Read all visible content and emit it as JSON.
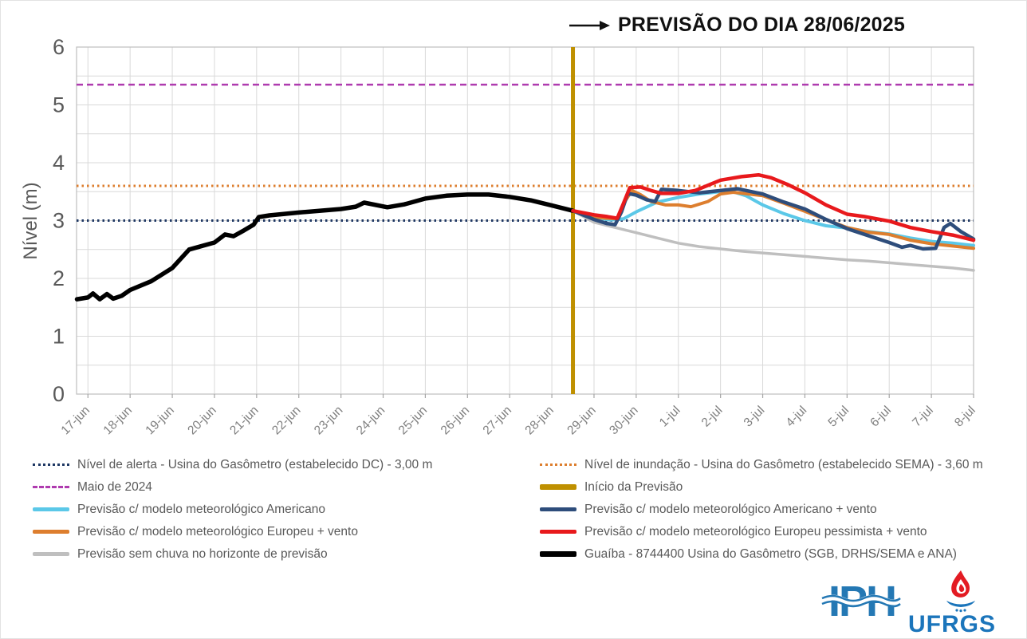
{
  "title": {
    "text": "PREVISÃO DO DIA 28/06/2025"
  },
  "chart_data": {
    "type": "line",
    "title": "PREVISÃO DO DIA 28/06/2025",
    "ylabel": "Nível (m)",
    "ylim": [
      0,
      6
    ],
    "y_major_ticks": [
      0,
      1,
      2,
      3,
      4,
      5,
      6
    ],
    "y_grid_step": 0.5,
    "xlim_days": [
      -0.27,
      21.0
    ],
    "x_ticks": [
      {
        "label": "17-jun",
        "d": 0
      },
      {
        "label": "18-jun",
        "d": 1
      },
      {
        "label": "19-jun",
        "d": 2
      },
      {
        "label": "20-jun",
        "d": 3
      },
      {
        "label": "21-jun",
        "d": 4
      },
      {
        "label": "22-jun",
        "d": 5
      },
      {
        "label": "23-jun",
        "d": 6
      },
      {
        "label": "24-jun",
        "d": 7
      },
      {
        "label": "25-jun",
        "d": 8
      },
      {
        "label": "26-jun",
        "d": 9
      },
      {
        "label": "27-jun",
        "d": 10
      },
      {
        "label": "28-jun",
        "d": 11
      },
      {
        "label": "29-jun",
        "d": 12
      },
      {
        "label": "30-jun",
        "d": 13
      },
      {
        "label": "1-jul",
        "d": 14
      },
      {
        "label": "2-jul",
        "d": 15
      },
      {
        "label": "3-jul",
        "d": 16
      },
      {
        "label": "4-jul",
        "d": 17
      },
      {
        "label": "5-jul",
        "d": 18
      },
      {
        "label": "6-jul",
        "d": 19
      },
      {
        "label": "7-jul",
        "d": 20
      },
      {
        "label": "8-jul",
        "d": 21
      }
    ],
    "grid_color": "#D9D9D9",
    "axis_color": "#BFBFBF",
    "tick_color": "#A6A6A6",
    "tick_label_color": "#7F7F7F",
    "y_label_color": "#595959",
    "forecast_start": {
      "label": "Início da Previsão",
      "d": 11.5,
      "color": "#BF9000",
      "width": 5
    },
    "reference_lines": [
      {
        "name": "maio-2024",
        "label": "Maio de 2024",
        "value": 5.35,
        "color": "#AF3BAF",
        "dash": "8 5",
        "width": 2.5
      },
      {
        "name": "nivel-inundacao",
        "label": "Nível de inundação - Usina do Gasômetro (estabelecido SEMA) - 3,60 m",
        "value": 3.6,
        "color": "#DD7E2E",
        "dash": "2.5 4",
        "width": 3
      },
      {
        "name": "nivel-alerta",
        "label": "Nível de alerta - Usina do Gasômetro (estabelecido DC) - 3,00 m",
        "value": 3.0,
        "color": "#1F3864",
        "dash": "2.5 4",
        "width": 3
      }
    ],
    "series": [
      {
        "name": "guaiba-observado",
        "label": "Guaíba - 8744400 Usina do Gasômetro (SGB, DRHS/SEMA e ANA)",
        "color": "#000000",
        "width": 5.5,
        "points": [
          [
            -0.26,
            1.64
          ],
          [
            0,
            1.67
          ],
          [
            0.12,
            1.74
          ],
          [
            0.28,
            1.64
          ],
          [
            0.45,
            1.73
          ],
          [
            0.6,
            1.65
          ],
          [
            0.8,
            1.7
          ],
          [
            1.0,
            1.8
          ],
          [
            1.5,
            1.95
          ],
          [
            2.0,
            2.18
          ],
          [
            2.4,
            2.5
          ],
          [
            3.0,
            2.62
          ],
          [
            3.25,
            2.76
          ],
          [
            3.45,
            2.73
          ],
          [
            3.7,
            2.83
          ],
          [
            3.93,
            2.93
          ],
          [
            4.05,
            3.06
          ],
          [
            4.3,
            3.09
          ],
          [
            5.0,
            3.14
          ],
          [
            6.0,
            3.2
          ],
          [
            6.35,
            3.24
          ],
          [
            6.55,
            3.31
          ],
          [
            7.1,
            3.23
          ],
          [
            7.5,
            3.28
          ],
          [
            8.0,
            3.38
          ],
          [
            8.5,
            3.43
          ],
          [
            9.0,
            3.45
          ],
          [
            9.5,
            3.45
          ],
          [
            10.0,
            3.41
          ],
          [
            10.5,
            3.35
          ],
          [
            11.0,
            3.26
          ],
          [
            11.5,
            3.17
          ]
        ]
      },
      {
        "name": "sem-chuva",
        "label": "Previsão sem chuva no horizonte de previsão",
        "color": "#BFBFBF",
        "width": 3.5,
        "points": [
          [
            11.5,
            3.17
          ],
          [
            12.0,
            2.97
          ],
          [
            12.5,
            2.88
          ],
          [
            13.0,
            2.79
          ],
          [
            13.5,
            2.7
          ],
          [
            14.0,
            2.61
          ],
          [
            14.5,
            2.55
          ],
          [
            15.0,
            2.51
          ],
          [
            15.5,
            2.47
          ],
          [
            16.0,
            2.44
          ],
          [
            16.5,
            2.41
          ],
          [
            17.0,
            2.38
          ],
          [
            17.5,
            2.35
          ],
          [
            18.0,
            2.32
          ],
          [
            18.5,
            2.3
          ],
          [
            19.0,
            2.27
          ],
          [
            19.5,
            2.24
          ],
          [
            20.0,
            2.21
          ],
          [
            20.5,
            2.18
          ],
          [
            21.0,
            2.14
          ]
        ]
      },
      {
        "name": "americano",
        "label": "Previsão c/ modelo meteorológico Americano",
        "color": "#5BC8E8",
        "width": 4,
        "points": [
          [
            11.5,
            3.17
          ],
          [
            12.0,
            3.05
          ],
          [
            12.4,
            3.01
          ],
          [
            12.7,
            3.03
          ],
          [
            13.0,
            3.15
          ],
          [
            13.5,
            3.32
          ],
          [
            14.0,
            3.4
          ],
          [
            14.5,
            3.46
          ],
          [
            15.0,
            3.5
          ],
          [
            15.2,
            3.52
          ],
          [
            15.6,
            3.43
          ],
          [
            16.0,
            3.27
          ],
          [
            16.5,
            3.12
          ],
          [
            17.0,
            3.0
          ],
          [
            17.5,
            2.91
          ],
          [
            18.0,
            2.87
          ],
          [
            18.5,
            2.81
          ],
          [
            19.0,
            2.77
          ],
          [
            19.5,
            2.7
          ],
          [
            20.0,
            2.64
          ],
          [
            20.5,
            2.61
          ],
          [
            21.0,
            2.57
          ]
        ]
      },
      {
        "name": "europeu-vento",
        "label": "Previsão c/ modelo meteorológico Europeu + vento",
        "color": "#DD7E2E",
        "width": 4,
        "points": [
          [
            11.5,
            3.17
          ],
          [
            12.0,
            3.06
          ],
          [
            12.3,
            3.04
          ],
          [
            12.55,
            3.03
          ],
          [
            12.75,
            3.35
          ],
          [
            12.9,
            3.52
          ],
          [
            13.1,
            3.45
          ],
          [
            13.35,
            3.33
          ],
          [
            13.7,
            3.27
          ],
          [
            14.0,
            3.27
          ],
          [
            14.3,
            3.24
          ],
          [
            14.7,
            3.33
          ],
          [
            15.0,
            3.46
          ],
          [
            15.3,
            3.49
          ],
          [
            16.0,
            3.43
          ],
          [
            16.5,
            3.3
          ],
          [
            17.0,
            3.16
          ],
          [
            17.5,
            3.02
          ],
          [
            18.0,
            2.88
          ],
          [
            18.5,
            2.8
          ],
          [
            19.0,
            2.76
          ],
          [
            19.5,
            2.66
          ],
          [
            20.0,
            2.6
          ],
          [
            20.5,
            2.56
          ],
          [
            21.0,
            2.52
          ]
        ]
      },
      {
        "name": "americano-vento",
        "label": "Previsão c/ modelo meteorológico Americano + vento",
        "color": "#2E4D7B",
        "width": 4.5,
        "points": [
          [
            11.5,
            3.17
          ],
          [
            12.0,
            3.02
          ],
          [
            12.3,
            2.95
          ],
          [
            12.5,
            2.93
          ],
          [
            12.65,
            3.15
          ],
          [
            12.8,
            3.47
          ],
          [
            13.0,
            3.44
          ],
          [
            13.25,
            3.36
          ],
          [
            13.45,
            3.33
          ],
          [
            13.6,
            3.54
          ],
          [
            14.0,
            3.52
          ],
          [
            14.5,
            3.48
          ],
          [
            15.0,
            3.52
          ],
          [
            15.4,
            3.55
          ],
          [
            16.0,
            3.46
          ],
          [
            16.5,
            3.32
          ],
          [
            17.0,
            3.2
          ],
          [
            17.5,
            3.02
          ],
          [
            18.0,
            2.86
          ],
          [
            18.5,
            2.74
          ],
          [
            19.0,
            2.62
          ],
          [
            19.3,
            2.54
          ],
          [
            19.5,
            2.57
          ],
          [
            19.8,
            2.51
          ],
          [
            20.1,
            2.52
          ],
          [
            20.3,
            2.88
          ],
          [
            20.45,
            2.95
          ],
          [
            20.7,
            2.81
          ],
          [
            21.0,
            2.68
          ]
        ]
      },
      {
        "name": "europeu-pessimista-vento",
        "label": "Previsão c/ modelo meteorológico Europeu pessimista + vento",
        "color": "#E8191C",
        "width": 4.5,
        "points": [
          [
            11.5,
            3.17
          ],
          [
            12.0,
            3.1
          ],
          [
            12.3,
            3.07
          ],
          [
            12.55,
            3.04
          ],
          [
            12.7,
            3.3
          ],
          [
            12.85,
            3.57
          ],
          [
            13.1,
            3.58
          ],
          [
            13.35,
            3.52
          ],
          [
            13.6,
            3.47
          ],
          [
            14.0,
            3.47
          ],
          [
            14.4,
            3.52
          ],
          [
            15.0,
            3.7
          ],
          [
            15.5,
            3.76
          ],
          [
            15.9,
            3.79
          ],
          [
            16.2,
            3.74
          ],
          [
            16.6,
            3.62
          ],
          [
            17.0,
            3.48
          ],
          [
            17.5,
            3.27
          ],
          [
            18.0,
            3.11
          ],
          [
            18.4,
            3.07
          ],
          [
            19.0,
            2.99
          ],
          [
            19.5,
            2.88
          ],
          [
            20.0,
            2.81
          ],
          [
            20.5,
            2.75
          ],
          [
            21.0,
            2.66
          ]
        ]
      }
    ]
  },
  "legend": {
    "left": [
      {
        "label": "Nível de alerta - Usina do Gasômetro (estabelecido DC) - 3,00 m",
        "color": "#1F3864",
        "style": "dotted"
      },
      {
        "label": "Maio de 2024",
        "color": "#AF3BAF",
        "style": "dashed"
      },
      {
        "label": "Previsão c/ modelo meteorológico Americano",
        "color": "#5BC8E8",
        "style": "line"
      },
      {
        "label": "Previsão c/ modelo meteorológico Europeu + vento",
        "color": "#DD7E2E",
        "style": "line"
      },
      {
        "label": "Previsão sem chuva no horizonte de previsão",
        "color": "#BFBFBF",
        "style": "line"
      }
    ],
    "right": [
      {
        "label": "Nível de inundação - Usina do Gasômetro (estabelecido SEMA) - 3,60 m",
        "color": "#DD7E2E",
        "style": "dotted"
      },
      {
        "label": "Início da Previsão",
        "color": "#BF9000",
        "style": "thick"
      },
      {
        "label": "Previsão c/ modelo meteorológico Americano + vento",
        "color": "#2E4D7B",
        "style": "line"
      },
      {
        "label": "Previsão c/ modelo meteorológico Europeu pessimista + vento",
        "color": "#E8191C",
        "style": "line"
      },
      {
        "label": "Guaíba - 8744400 Usina do Gasômetro (SGB, DRHS/SEMA e ANA)",
        "color": "#000000",
        "style": "thick"
      }
    ]
  },
  "logos": {
    "iph_text": "IPH",
    "ufrgs_text": "UFRGS",
    "iph_color": "#2478B4",
    "ufrgs_blue": "#1B75BB",
    "ufrgs_red": "#E31B23"
  }
}
